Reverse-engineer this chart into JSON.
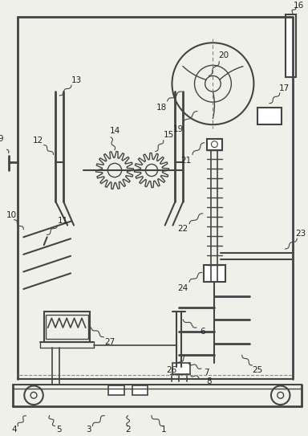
{
  "bg_color": "#f0f0eb",
  "line_color": "#444444",
  "label_color": "#222222",
  "fig_width": 3.84,
  "fig_height": 5.43,
  "dpi": 100
}
